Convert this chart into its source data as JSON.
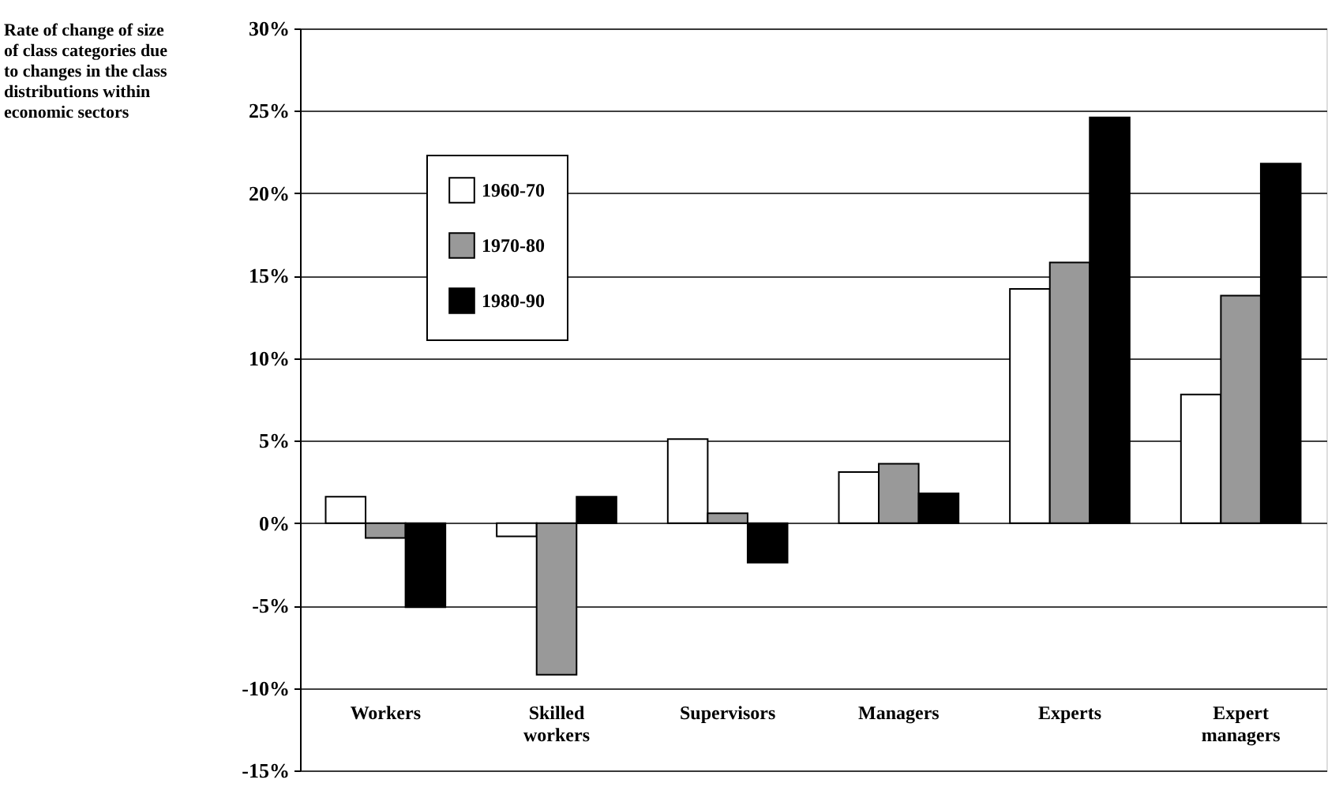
{
  "chart_data": {
    "type": "bar",
    "ylabel": "Rate of change of size of class categories due to changes in the class distributions within economic sectors",
    "categories": [
      "Workers",
      "Skilled workers",
      "Supervisors",
      "Managers",
      "Experts",
      "Expert managers"
    ],
    "series": [
      {
        "name": "1960-70",
        "color": "#ffffff",
        "values": [
          1.6,
          -0.8,
          5.1,
          3.1,
          14.2,
          7.8
        ]
      },
      {
        "name": "1970-80",
        "color": "#999999",
        "values": [
          -0.9,
          -9.2,
          0.6,
          3.6,
          15.8,
          13.8
        ]
      },
      {
        "name": "1980-90",
        "color": "#000000",
        "values": [
          -5.1,
          1.6,
          -2.4,
          1.8,
          24.6,
          21.8
        ]
      }
    ],
    "ylim": [
      -15,
      30
    ],
    "yticks": [
      {
        "value": -15,
        "label": "-15%"
      },
      {
        "value": -10,
        "label": "-10%"
      },
      {
        "value": -5,
        "label": "-5%"
      },
      {
        "value": 0,
        "label": "0%"
      },
      {
        "value": 5,
        "label": "5%"
      },
      {
        "value": 10,
        "label": "10%"
      },
      {
        "value": 15,
        "label": "15%"
      },
      {
        "value": 20,
        "label": "20%"
      },
      {
        "value": 25,
        "label": "25%"
      },
      {
        "value": 30,
        "label": "30%"
      }
    ],
    "grid": "y",
    "legend": "top left"
  }
}
